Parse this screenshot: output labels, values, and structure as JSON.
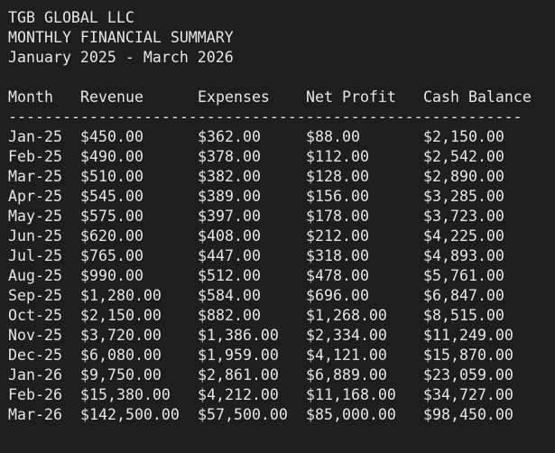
{
  "header": {
    "company": "TGB GLOBAL LLC",
    "title": "MONTHLY FINANCIAL SUMMARY",
    "period": "January 2025 - March 2026"
  },
  "table": {
    "columns": [
      "Month",
      "Revenue",
      "Expenses",
      "Net Profit",
      "Cash Balance"
    ],
    "separator": "---------------------------------------------------------",
    "rows": [
      [
        "Jan-25",
        "$450.00",
        "$362.00",
        "$88.00",
        "$2,150.00"
      ],
      [
        "Feb-25",
        "$490.00",
        "$378.00",
        "$112.00",
        "$2,542.00"
      ],
      [
        "Mar-25",
        "$510.00",
        "$382.00",
        "$128.00",
        "$2,890.00"
      ],
      [
        "Apr-25",
        "$545.00",
        "$389.00",
        "$156.00",
        "$3,285.00"
      ],
      [
        "May-25",
        "$575.00",
        "$397.00",
        "$178.00",
        "$3,723.00"
      ],
      [
        "Jun-25",
        "$620.00",
        "$408.00",
        "$212.00",
        "$4,225.00"
      ],
      [
        "Jul-25",
        "$765.00",
        "$447.00",
        "$318.00",
        "$4,893.00"
      ],
      [
        "Aug-25",
        "$990.00",
        "$512.00",
        "$478.00",
        "$5,761.00"
      ],
      [
        "Sep-25",
        "$1,280.00",
        "$584.00",
        "$696.00",
        "$6,847.00"
      ],
      [
        "Oct-25",
        "$2,150.00",
        "$882.00",
        "$1,268.00",
        "$8,515.00"
      ],
      [
        "Nov-25",
        "$3,720.00",
        "$1,386.00",
        "$2,334.00",
        "$11,249.00"
      ],
      [
        "Dec-25",
        "$6,080.00",
        "$1,959.00",
        "$4,121.00",
        "$15,870.00"
      ],
      [
        "Jan-26",
        "$9,750.00",
        "$2,861.00",
        "$6,889.00",
        "$23,059.00"
      ],
      [
        "Feb-26",
        "$15,380.00",
        "$4,212.00",
        "$11,168.00",
        "$34,727.00"
      ],
      [
        "Mar-26",
        "$142,500.00",
        "$57,500.00",
        "$85,000.00",
        "$98,450.00"
      ]
    ]
  }
}
